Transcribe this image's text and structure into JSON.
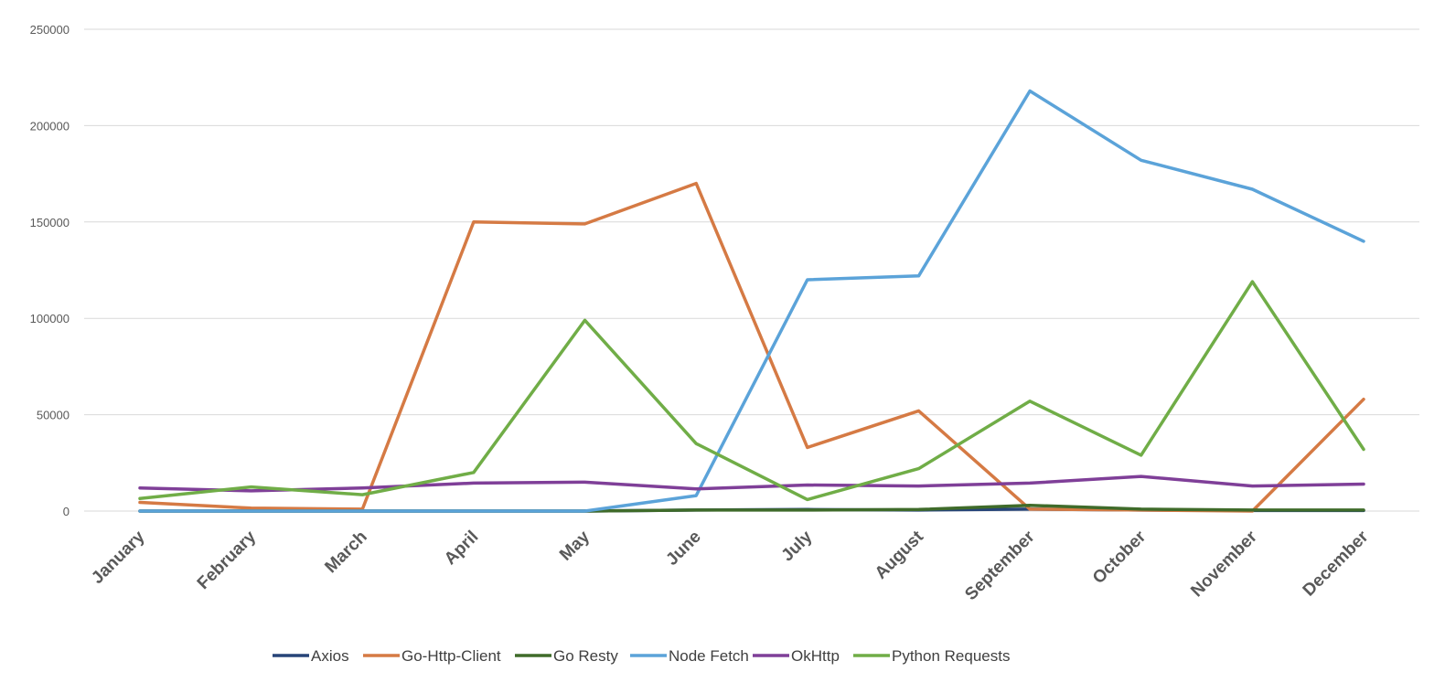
{
  "chart_data": {
    "type": "line",
    "title": "",
    "xlabel": "",
    "ylabel": "",
    "ylim": [
      0,
      250000
    ],
    "yticks": [
      0,
      50000,
      100000,
      150000,
      200000,
      250000
    ],
    "ytick_labels": [
      "0",
      "50000",
      "100000",
      "150000",
      "200000",
      "250000"
    ],
    "grid": "horizontal",
    "legend_position": "bottom",
    "categories": [
      "January",
      "February",
      "March",
      "April",
      "May",
      "June",
      "July",
      "August",
      "September",
      "October",
      "November",
      "December"
    ],
    "series": [
      {
        "name": "Axios",
        "color": "#264478",
        "values": [
          0,
          0,
          0,
          0,
          0,
          500,
          800,
          500,
          1000,
          500,
          300,
          300
        ]
      },
      {
        "name": "Go-Http-Client",
        "color": "#D57A44",
        "values": [
          4500,
          1500,
          1000,
          150000,
          149000,
          170000,
          33000,
          52000,
          1000,
          500,
          0,
          58000
        ]
      },
      {
        "name": "Go Resty",
        "color": "#3F6B2A",
        "values": [
          0,
          0,
          0,
          0,
          0,
          500,
          500,
          800,
          3000,
          1000,
          500,
          500
        ]
      },
      {
        "name": "Node Fetch",
        "color": "#5BA3D9",
        "values": [
          0,
          0,
          0,
          0,
          0,
          8000,
          120000,
          122000,
          218000,
          182000,
          167000,
          140000
        ]
      },
      {
        "name": "OkHttp",
        "color": "#7F3F98",
        "values": [
          12000,
          10500,
          12000,
          14500,
          15000,
          11500,
          13500,
          13000,
          14500,
          18000,
          13000,
          14000
        ]
      },
      {
        "name": "Python Requests",
        "color": "#70AD47",
        "values": [
          6500,
          12500,
          8500,
          20000,
          99000,
          35000,
          6000,
          22000,
          57000,
          29000,
          119000,
          32000
        ]
      }
    ]
  }
}
